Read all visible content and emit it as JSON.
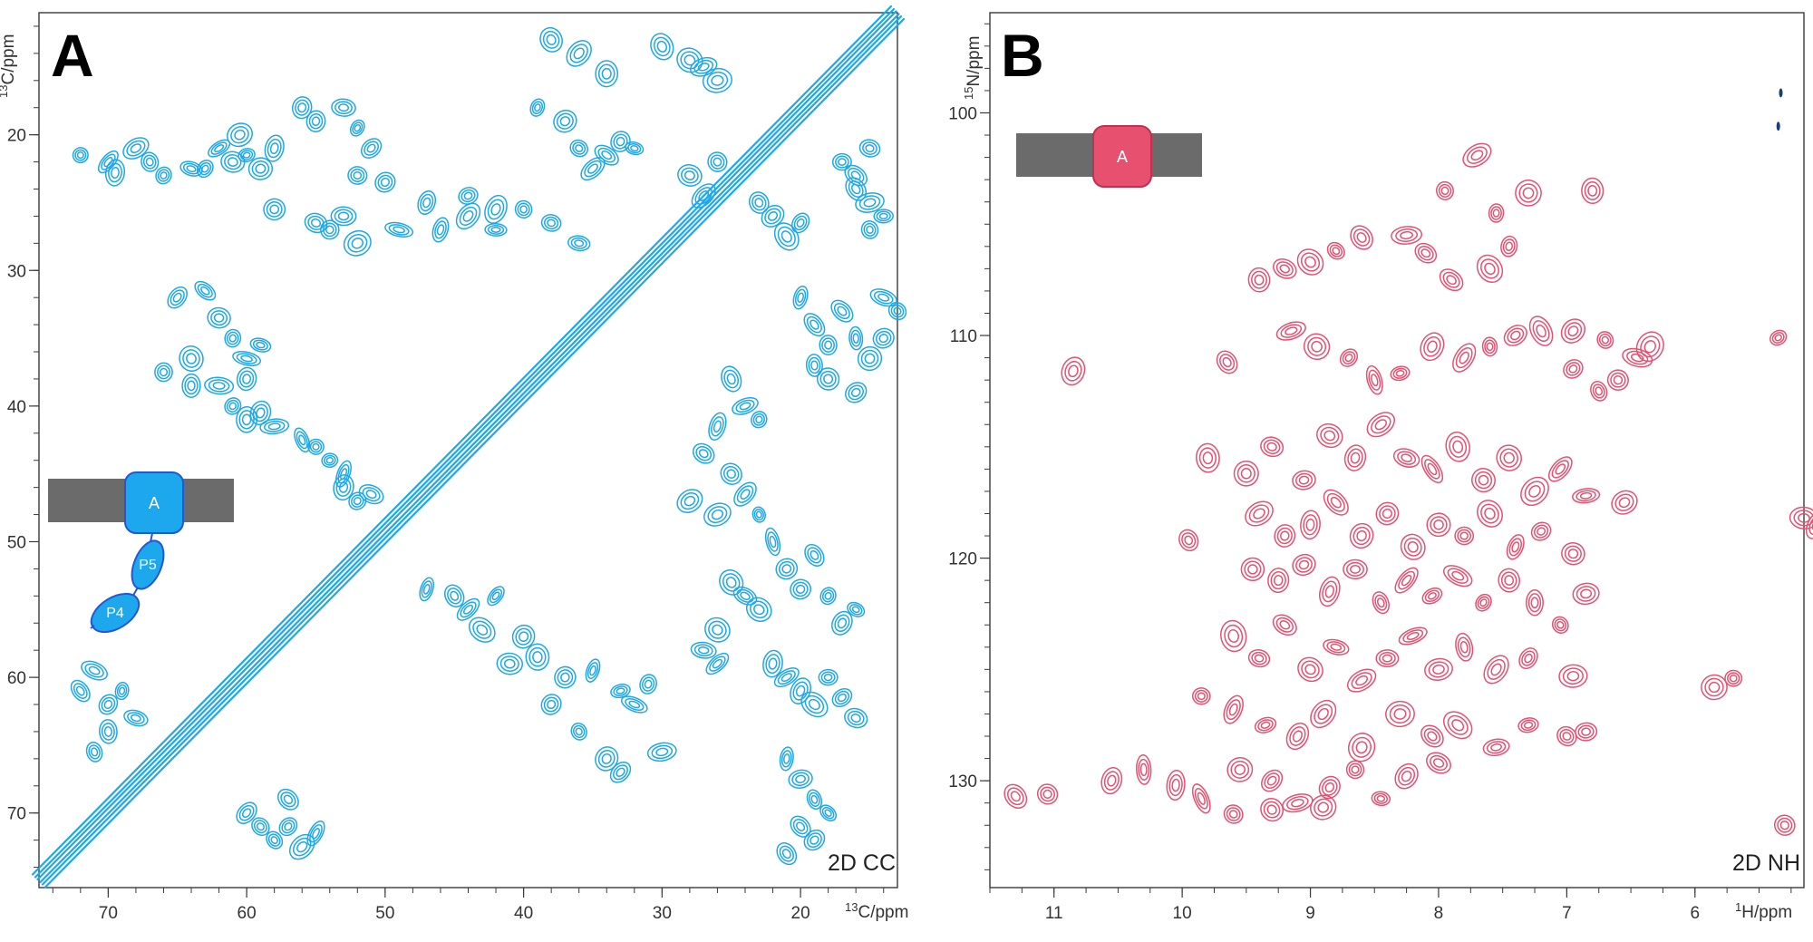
{
  "colors": {
    "cc_contour": "#1da7ec",
    "nh_contour": "#e8506f",
    "nh_negative": "#16407a",
    "membrane": "#6b6b6b",
    "badge_border_a": "#2456d6",
    "badge_border_b": "#c2304f"
  },
  "chart_data": [
    {
      "type": "heatmap",
      "panel": "A",
      "title": "2D CC",
      "xlabel": {
        "isotope": "13",
        "unit": "C/ppm"
      },
      "ylabel": {
        "isotope": "13",
        "unit": "C/ppm"
      },
      "xlim": [
        75,
        13
      ],
      "ylim": [
        11,
        75.5
      ],
      "xticks": [
        70,
        60,
        50,
        40,
        30,
        20
      ],
      "yticks": [
        20,
        30,
        40,
        50,
        60,
        70
      ],
      "x_minor_step": 2,
      "y_minor_step": 2,
      "inset": {
        "badge": "A",
        "lobes": [
          "P5",
          "P4"
        ]
      },
      "diagonal": {
        "from": [
          75,
          75
        ],
        "to": [
          13,
          11
        ]
      },
      "peaks": [
        [
          72,
          21.5
        ],
        [
          70,
          22
        ],
        [
          69.5,
          22.8
        ],
        [
          68,
          21
        ],
        [
          67,
          22
        ],
        [
          66,
          23
        ],
        [
          64,
          22.5
        ],
        [
          62,
          21
        ],
        [
          61,
          22
        ],
        [
          60,
          21.5
        ],
        [
          59,
          22.5
        ],
        [
          58,
          21
        ],
        [
          60.5,
          20
        ],
        [
          63,
          22.5
        ],
        [
          56,
          18
        ],
        [
          55,
          19
        ],
        [
          53,
          18
        ],
        [
          52,
          19.5
        ],
        [
          51,
          21
        ],
        [
          52,
          23
        ],
        [
          50,
          23.5
        ],
        [
          58,
          25.5
        ],
        [
          55,
          26.5
        ],
        [
          54,
          27
        ],
        [
          53,
          26
        ],
        [
          52,
          28
        ],
        [
          49,
          27
        ],
        [
          61,
          40
        ],
        [
          60,
          41
        ],
        [
          59,
          40.5
        ],
        [
          58,
          41.5
        ],
        [
          56,
          42.5
        ],
        [
          55,
          43
        ],
        [
          54,
          44
        ],
        [
          53,
          45
        ],
        [
          53,
          46
        ],
        [
          52,
          47
        ],
        [
          51,
          46.5
        ],
        [
          65,
          32
        ],
        [
          63,
          31.5
        ],
        [
          62,
          33.5
        ],
        [
          61,
          35
        ],
        [
          60,
          36.5
        ],
        [
          59,
          35.5
        ],
        [
          60,
          38
        ],
        [
          64,
          38.5
        ],
        [
          62,
          38.5
        ],
        [
          66,
          37.5
        ],
        [
          64,
          36.5
        ],
        [
          72,
          61
        ],
        [
          71,
          59.5
        ],
        [
          70,
          62
        ],
        [
          69,
          61
        ],
        [
          68,
          63
        ],
        [
          70,
          64
        ],
        [
          71,
          65.5
        ],
        [
          60,
          70
        ],
        [
          59,
          71
        ],
        [
          58,
          72
        ],
        [
          57,
          71
        ],
        [
          56,
          72.5
        ],
        [
          55,
          71.5
        ],
        [
          57,
          69
        ],
        [
          47,
          53.5
        ],
        [
          45,
          54
        ],
        [
          44,
          55
        ],
        [
          42,
          54
        ],
        [
          43,
          56.5
        ],
        [
          40,
          57
        ],
        [
          41,
          59
        ],
        [
          39,
          58.5
        ],
        [
          37,
          60
        ],
        [
          35,
          59.5
        ],
        [
          33,
          61
        ],
        [
          32,
          62
        ],
        [
          31,
          60.5
        ],
        [
          38,
          62
        ],
        [
          36,
          64
        ],
        [
          34,
          66
        ],
        [
          33,
          67
        ],
        [
          30,
          65.5
        ],
        [
          46,
          27
        ],
        [
          44,
          26
        ],
        [
          42,
          27
        ],
        [
          40,
          25.5
        ],
        [
          38,
          26.5
        ],
        [
          36,
          28
        ],
        [
          44,
          24.5
        ],
        [
          42,
          25.5
        ],
        [
          47,
          25
        ],
        [
          39,
          18
        ],
        [
          37,
          19
        ],
        [
          36,
          21
        ],
        [
          34,
          21.5
        ],
        [
          33,
          20.5
        ],
        [
          35,
          22.5
        ],
        [
          32,
          21
        ],
        [
          38,
          13
        ],
        [
          36,
          14
        ],
        [
          34,
          15.5
        ],
        [
          30,
          13.5
        ],
        [
          28,
          14.5
        ],
        [
          27,
          15
        ],
        [
          26,
          16
        ],
        [
          28,
          23
        ],
        [
          27,
          24.5
        ],
        [
          26,
          22
        ],
        [
          23,
          25
        ],
        [
          22,
          26
        ],
        [
          21,
          27.5
        ],
        [
          20,
          26.5
        ],
        [
          20,
          32
        ],
        [
          19,
          34
        ],
        [
          18,
          35.5
        ],
        [
          17,
          33
        ],
        [
          19,
          37
        ],
        [
          18,
          38
        ],
        [
          16,
          39
        ],
        [
          25,
          38
        ],
        [
          24,
          40
        ],
        [
          23,
          41
        ],
        [
          26,
          41.5
        ],
        [
          27,
          43.5
        ],
        [
          25,
          45
        ],
        [
          24,
          46.5
        ],
        [
          23,
          48
        ],
        [
          26,
          48
        ],
        [
          28,
          47
        ],
        [
          22,
          50
        ],
        [
          21,
          52
        ],
        [
          20,
          53.5
        ],
        [
          19,
          51
        ],
        [
          18,
          54
        ],
        [
          17,
          56
        ],
        [
          16,
          55
        ],
        [
          25,
          53
        ],
        [
          24,
          54
        ],
        [
          23,
          55
        ],
        [
          26,
          56.5
        ],
        [
          27,
          58
        ],
        [
          26,
          59
        ],
        [
          22,
          59
        ],
        [
          21,
          60
        ],
        [
          20,
          61
        ],
        [
          19,
          62
        ],
        [
          18,
          60
        ],
        [
          17,
          61.5
        ],
        [
          16,
          63
        ],
        [
          21,
          66
        ],
        [
          20,
          67.5
        ],
        [
          19,
          69
        ],
        [
          18,
          70
        ],
        [
          20,
          71
        ],
        [
          19,
          72
        ],
        [
          21,
          73
        ],
        [
          16,
          24
        ],
        [
          15,
          25
        ],
        [
          14,
          26
        ],
        [
          15,
          27
        ],
        [
          16,
          23
        ],
        [
          17,
          22
        ],
        [
          15,
          21
        ],
        [
          14,
          32
        ],
        [
          13,
          33
        ],
        [
          14,
          35
        ],
        [
          15,
          36.5
        ],
        [
          16,
          35
        ]
      ]
    },
    {
      "type": "heatmap",
      "panel": "B",
      "title": "2D NH",
      "xlabel": {
        "isotope": "1",
        "unit": "H/ppm"
      },
      "ylabel": {
        "isotope": "15",
        "unit": "N/ppm"
      },
      "xlim": [
        11.5,
        5.15
      ],
      "ylim": [
        95.5,
        134.8
      ],
      "xticks": [
        11,
        10,
        9,
        8,
        7,
        6
      ],
      "yticks": [
        100,
        110,
        120,
        130
      ],
      "x_minor_step": 0.25,
      "y_minor_step": 1,
      "inset": {
        "badge": "A"
      },
      "negative_peaks": [
        [
          5.33,
          99.1
        ],
        [
          5.35,
          100.6
        ]
      ],
      "peaks": [
        [
          9.4,
          107.5
        ],
        [
          9.2,
          107
        ],
        [
          9.0,
          106.7
        ],
        [
          8.8,
          106.2
        ],
        [
          8.6,
          105.6
        ],
        [
          7.95,
          103.5
        ],
        [
          7.7,
          101.9
        ],
        [
          7.55,
          104.5
        ],
        [
          7.3,
          103.6
        ],
        [
          6.8,
          103.5
        ],
        [
          8.25,
          105.5
        ],
        [
          8.1,
          106.3
        ],
        [
          7.9,
          107.5
        ],
        [
          7.6,
          107
        ],
        [
          7.45,
          106
        ],
        [
          9.65,
          111.2
        ],
        [
          9.15,
          109.8
        ],
        [
          8.95,
          110.5
        ],
        [
          8.7,
          111
        ],
        [
          8.5,
          112
        ],
        [
          8.3,
          111.7
        ],
        [
          8.05,
          110.5
        ],
        [
          7.8,
          111
        ],
        [
          7.6,
          110.5
        ],
        [
          7.4,
          110
        ],
        [
          7.2,
          109.8
        ],
        [
          6.95,
          111.5
        ],
        [
          6.75,
          112.5
        ],
        [
          6.6,
          112
        ],
        [
          6.45,
          111
        ],
        [
          6.35,
          110.5
        ],
        [
          6.7,
          110.2
        ],
        [
          6.95,
          109.8
        ],
        [
          10.85,
          111.6
        ],
        [
          5.35,
          110.1
        ],
        [
          9.8,
          115.5
        ],
        [
          9.5,
          116.2
        ],
        [
          9.3,
          115
        ],
        [
          9.05,
          116.5
        ],
        [
          8.85,
          114.5
        ],
        [
          8.65,
          115.5
        ],
        [
          8.45,
          114
        ],
        [
          8.25,
          115.5
        ],
        [
          8.05,
          116
        ],
        [
          7.85,
          115
        ],
        [
          7.65,
          116.5
        ],
        [
          7.45,
          115.5
        ],
        [
          7.25,
          117
        ],
        [
          7.05,
          116
        ],
        [
          6.85,
          117.2
        ],
        [
          6.55,
          117.5
        ],
        [
          9.4,
          118
        ],
        [
          9.2,
          119
        ],
        [
          9.0,
          118.5
        ],
        [
          8.8,
          117.5
        ],
        [
          8.6,
          119
        ],
        [
          8.4,
          118
        ],
        [
          8.2,
          119.5
        ],
        [
          8.0,
          118.5
        ],
        [
          7.8,
          119
        ],
        [
          7.6,
          118
        ],
        [
          7.4,
          119.5
        ],
        [
          7.2,
          118.8
        ],
        [
          6.95,
          119.8
        ],
        [
          5.15,
          118.2
        ],
        [
          5.05,
          118.5
        ],
        [
          9.95,
          119.2
        ],
        [
          9.45,
          120.5
        ],
        [
          9.25,
          121
        ],
        [
          9.05,
          120.3
        ],
        [
          8.85,
          121.5
        ],
        [
          8.65,
          120.5
        ],
        [
          8.45,
          122
        ],
        [
          8.25,
          121
        ],
        [
          8.05,
          121.7
        ],
        [
          7.85,
          120.8
        ],
        [
          7.65,
          122
        ],
        [
          7.45,
          121
        ],
        [
          7.25,
          122
        ],
        [
          7.05,
          123
        ],
        [
          6.85,
          121.6
        ],
        [
          9.6,
          123.5
        ],
        [
          9.4,
          124.5
        ],
        [
          9.2,
          123
        ],
        [
          9.0,
          125
        ],
        [
          8.8,
          124
        ],
        [
          8.6,
          125.5
        ],
        [
          8.4,
          124.5
        ],
        [
          8.2,
          123.5
        ],
        [
          8.0,
          125
        ],
        [
          7.8,
          124
        ],
        [
          7.55,
          125
        ],
        [
          7.3,
          124.5
        ],
        [
          6.95,
          125.3
        ],
        [
          5.85,
          125.8
        ],
        [
          5.7,
          125.4
        ],
        [
          9.85,
          126.2
        ],
        [
          9.6,
          126.8
        ],
        [
          9.35,
          127.5
        ],
        [
          9.1,
          128
        ],
        [
          8.9,
          127
        ],
        [
          8.6,
          128.5
        ],
        [
          8.3,
          127
        ],
        [
          8.05,
          128
        ],
        [
          7.85,
          127.5
        ],
        [
          7.55,
          128.5
        ],
        [
          7.3,
          127.5
        ],
        [
          7.0,
          128
        ],
        [
          6.85,
          127.8
        ],
        [
          9.55,
          129.5
        ],
        [
          9.3,
          130
        ],
        [
          9.1,
          131
        ],
        [
          8.85,
          130.3
        ],
        [
          8.65,
          129.5
        ],
        [
          8.45,
          130.8
        ],
        [
          8.25,
          129.8
        ],
        [
          8.0,
          129.2
        ],
        [
          11.3,
          130.7
        ],
        [
          11.05,
          130.6
        ],
        [
          10.55,
          130
        ],
        [
          10.3,
          129.5
        ],
        [
          10.05,
          130.2
        ],
        [
          9.85,
          130.8
        ],
        [
          9.6,
          131.5
        ],
        [
          9.3,
          131.3
        ],
        [
          8.9,
          131.2
        ],
        [
          5.3,
          132
        ]
      ]
    }
  ],
  "axis_labels": {
    "a_y_sup": "13",
    "a_y_unit": "C/ppm",
    "a_x_sup": "13",
    "a_x_unit": "C/ppm",
    "b_y_sup": "15",
    "b_y_unit": "N/ppm",
    "b_x_sup": "1",
    "b_x_unit": "H/ppm"
  },
  "panels": {
    "a": {
      "letter": "A",
      "experiment": "2D CC"
    },
    "b": {
      "letter": "B",
      "experiment": "2D NH"
    }
  },
  "inset_a": {
    "badge": "A",
    "lobe_upper": "P5",
    "lobe_lower": "P4"
  },
  "inset_b": {
    "badge": "A"
  }
}
